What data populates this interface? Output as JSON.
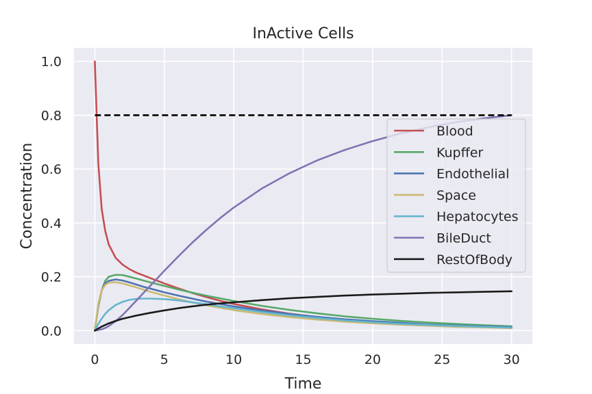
{
  "chart_data": {
    "type": "line",
    "title": "InActive Cells",
    "xlabel": "Time",
    "ylabel": "Concentration",
    "xlim": [
      -1.5,
      31.5
    ],
    "ylim": [
      -0.05,
      1.05
    ],
    "xticks": [
      0,
      5,
      10,
      15,
      20,
      25,
      30
    ],
    "xtick_labels": [
      "0",
      "5",
      "10",
      "15",
      "20",
      "25",
      "30"
    ],
    "yticks": [
      0.0,
      0.2,
      0.4,
      0.6,
      0.8,
      1.0
    ],
    "ytick_labels": [
      "0.0",
      "0.2",
      "0.4",
      "0.6",
      "0.8",
      "1.0"
    ],
    "grid": true,
    "legend_position": "center-right",
    "reference_line": {
      "y": 0.8,
      "x_range": [
        0,
        30
      ],
      "style": "dashed",
      "color": "#000000"
    },
    "x": [
      0,
      0.25,
      0.5,
      0.75,
      1,
      1.5,
      2,
      2.5,
      3,
      3.5,
      4,
      5,
      6,
      7,
      8,
      9,
      10,
      12,
      14,
      16,
      18,
      20,
      22,
      24,
      26,
      28,
      30
    ],
    "series": [
      {
        "name": "Blood",
        "color": "#c44e52",
        "values": [
          1.0,
          0.62,
          0.45,
          0.37,
          0.32,
          0.27,
          0.245,
          0.228,
          0.215,
          0.205,
          0.195,
          0.175,
          0.157,
          0.14,
          0.125,
          0.111,
          0.099,
          0.079,
          0.063,
          0.05,
          0.04,
          0.032,
          0.026,
          0.021,
          0.017,
          0.014,
          0.011
        ]
      },
      {
        "name": "Kupffer",
        "color": "#55a868",
        "values": [
          0.0,
          0.09,
          0.15,
          0.185,
          0.2,
          0.207,
          0.206,
          0.2,
          0.193,
          0.186,
          0.179,
          0.166,
          0.153,
          0.141,
          0.13,
          0.12,
          0.11,
          0.092,
          0.077,
          0.064,
          0.053,
          0.044,
          0.036,
          0.03,
          0.025,
          0.02,
          0.016
        ]
      },
      {
        "name": "Endothelial",
        "color": "#4c72b0",
        "values": [
          0.0,
          0.095,
          0.15,
          0.175,
          0.185,
          0.19,
          0.186,
          0.179,
          0.171,
          0.163,
          0.156,
          0.142,
          0.13,
          0.119,
          0.108,
          0.099,
          0.09,
          0.075,
          0.062,
          0.051,
          0.042,
          0.035,
          0.029,
          0.023,
          0.019,
          0.016,
          0.013
        ]
      },
      {
        "name": "Space",
        "color": "#ccb974",
        "values": [
          0.0,
          0.1,
          0.15,
          0.17,
          0.178,
          0.18,
          0.175,
          0.168,
          0.16,
          0.152,
          0.144,
          0.13,
          0.117,
          0.105,
          0.094,
          0.085,
          0.076,
          0.062,
          0.05,
          0.041,
          0.033,
          0.027,
          0.022,
          0.018,
          0.014,
          0.012,
          0.009
        ]
      },
      {
        "name": "Hepatocytes",
        "color": "#64b5cd",
        "values": [
          0.0,
          0.025,
          0.045,
          0.062,
          0.076,
          0.095,
          0.107,
          0.114,
          0.118,
          0.119,
          0.119,
          0.117,
          0.112,
          0.105,
          0.098,
          0.09,
          0.083,
          0.069,
          0.057,
          0.047,
          0.038,
          0.031,
          0.025,
          0.021,
          0.017,
          0.014,
          0.011
        ]
      },
      {
        "name": "BileDuct",
        "color": "#8172b3",
        "values": [
          0.0,
          0.002,
          0.005,
          0.01,
          0.017,
          0.035,
          0.058,
          0.085,
          0.112,
          0.14,
          0.167,
          0.222,
          0.275,
          0.326,
          0.373,
          0.417,
          0.457,
          0.527,
          0.584,
          0.632,
          0.671,
          0.704,
          0.732,
          0.755,
          0.774,
          0.788,
          0.8
        ]
      },
      {
        "name": "RestOfBody",
        "color": "#1a1a1a",
        "values": [
          0.0,
          0.008,
          0.015,
          0.021,
          0.027,
          0.036,
          0.044,
          0.05,
          0.056,
          0.061,
          0.066,
          0.075,
          0.083,
          0.09,
          0.096,
          0.101,
          0.105,
          0.113,
          0.12,
          0.125,
          0.13,
          0.134,
          0.137,
          0.14,
          0.142,
          0.144,
          0.146
        ]
      }
    ]
  }
}
